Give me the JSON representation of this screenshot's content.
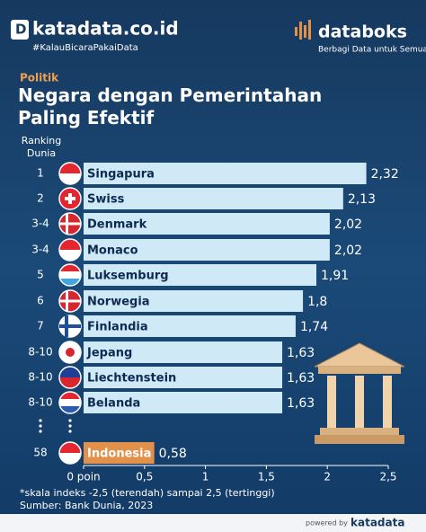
{
  "header": {
    "brand": "katadata.co.id",
    "tagline": "#KalauBicaraPakaiData",
    "partner": "databoks",
    "partner_tagline": "Berbagi Data untuk Semua"
  },
  "footer": {
    "powered_by": "powered by",
    "brand": "katadata"
  },
  "chart_data": {
    "type": "bar",
    "orientation": "horizontal",
    "section": "Politik",
    "title": "Negara dengan Pemerintahan Paling Efektif",
    "rank_header": "Ranking Dunia",
    "ranks": [
      "1",
      "2",
      "3-4",
      "3-4",
      "5",
      "6",
      "7",
      "8-10",
      "8-10",
      "8-10",
      "58"
    ],
    "categories": [
      "Singapura",
      "Swiss",
      "Denmark",
      "Monaco",
      "Luksemburg",
      "Norwegia",
      "Finlandia",
      "Jepang",
      "Liechtenstein",
      "Belanda",
      "Indonesia"
    ],
    "values": [
      2.32,
      2.13,
      2.02,
      2.02,
      1.91,
      1.8,
      1.74,
      1.63,
      1.63,
      1.63,
      0.58
    ],
    "value_labels": [
      "2,32",
      "2,13",
      "2,02",
      "2,02",
      "1,91",
      "1,8",
      "1,74",
      "1,63",
      "1,63",
      "1,63",
      "0,58"
    ],
    "bar_colors": [
      "#cfe9f6",
      "#cfe9f6",
      "#cfe9f6",
      "#cfe9f6",
      "#cfe9f6",
      "#cfe9f6",
      "#cfe9f6",
      "#cfe9f6",
      "#cfe9f6",
      "#cfe9f6",
      "#e2914a"
    ],
    "xlim": [
      0,
      2.5
    ],
    "xticks": [
      {
        "value": 0,
        "label": "0 poin"
      },
      {
        "value": 0.5,
        "label": "0,5"
      },
      1,
      {
        "value": 1.5,
        "label": "1,5"
      },
      2,
      {
        "value": 2.5,
        "label": "2,5"
      }
    ],
    "notes": [
      "*skala indeks -2,5 (terendah) sampai 2,5 (tertinggi)",
      "Sumber: Bank Dunia, 2023"
    ]
  }
}
